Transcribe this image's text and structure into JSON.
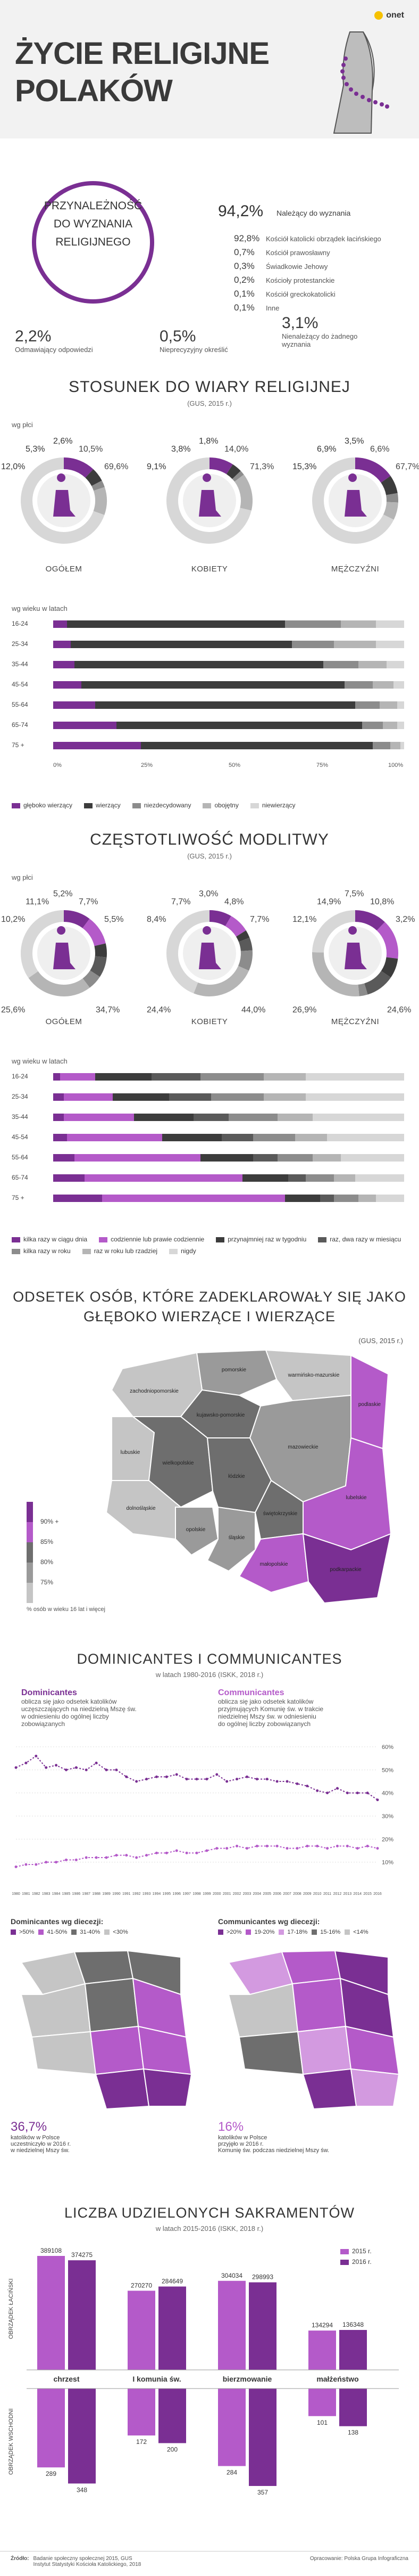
{
  "brand": {
    "name": "onet",
    "accent": "#f6c100"
  },
  "colors": {
    "dark": "#3c3c3c",
    "purple": "#7a2f93",
    "violet": "#b45ac9",
    "grey": "#8c8c8c",
    "light": "#d7d7d7"
  },
  "header": {
    "title_line1": "ŻYCIE RELIGIJNE",
    "title_line2": "POLAKÓW"
  },
  "affiliation": {
    "box_label": [
      "PRZYNALEŻNOŚĆ",
      "DO WYZNANIA",
      "RELIGIJNEGO"
    ],
    "main_pct": "94,2%",
    "main_label": "Należący do wyznania",
    "items": [
      {
        "pct": "92,8%",
        "label": "Kościół katolicki obrządek łacińskiego"
      },
      {
        "pct": "0,7%",
        "label": "Kościół prawosławny"
      },
      {
        "pct": "0,3%",
        "label": "Świadkowie Jehowy"
      },
      {
        "pct": "0,2%",
        "label": "Kościoły protestanckie"
      },
      {
        "pct": "0,1%",
        "label": "Kościół greckokatolicki"
      },
      {
        "pct": "0,1%",
        "label": "Inne"
      }
    ],
    "refused_pct": "2,2%",
    "refused_label": "Odmawiający odpowiedzi",
    "undetermined_pct": "0,5%",
    "undetermined_label": "Nieprecyzyjny określić",
    "none_pct": "3,1%",
    "none_label": [
      "Nienależący do żadnego",
      "wyznania"
    ]
  },
  "attitude": {
    "title": "STOSUNEK DO WIARY RELIGIJNEJ",
    "source": "(GUS, 2015 r.)",
    "by_sex_label": "wg płci",
    "donuts": [
      {
        "label": "OGÓŁEM",
        "values": [
          "12,0%",
          "5,3%",
          "2,6%",
          "10,5%",
          "69,6%"
        ]
      },
      {
        "label": "KOBIETY",
        "values": [
          "9,1%",
          "3,8%",
          "1,8%",
          "14,0%",
          "71,3%"
        ]
      },
      {
        "label": "MĘŻCZYŹNI",
        "values": [
          "15,3%",
          "6,9%",
          "3,5%",
          "6,6%",
          "67,7%"
        ]
      }
    ],
    "by_age_label": "wg wieku w latach",
    "ages": [
      "16-24",
      "25-34",
      "35-44",
      "45-54",
      "55-64",
      "65-74",
      "75 +"
    ],
    "axis": [
      "0%",
      "25%",
      "50%",
      "75%",
      "100%"
    ],
    "legend": [
      "głęboko wierzący",
      "wierzący",
      "niezdecydowany",
      "obojętny",
      "niewierzący"
    ]
  },
  "prayer": {
    "title": "CZĘSTOTLIWOŚĆ MODLITWY",
    "source": "(GUS, 2015 r.)",
    "by_sex_label": "wg płci",
    "donuts": [
      {
        "label": "OGÓŁEM",
        "values": [
          "10,2%",
          "11,1%",
          "5,2%",
          "7,7%",
          "5,5%",
          "25,6%",
          "34,7%"
        ]
      },
      {
        "label": "KOBIETY",
        "values": [
          "8,4%",
          "7,7%",
          "3,0%",
          "4,8%",
          "7,7%",
          "24,4%",
          "44,0%"
        ]
      },
      {
        "label": "MĘŻCZYŹNI",
        "values": [
          "12,1%",
          "14,9%",
          "7,5%",
          "10,8%",
          "3,2%",
          "26,9%",
          "24,6%"
        ]
      }
    ],
    "by_age_label": "wg wieku w latach",
    "ages": [
      "16-24",
      "25-34",
      "35-44",
      "45-54",
      "55-64",
      "65-74",
      "75 +"
    ],
    "legend": [
      "kilka razy w ciągu dnia",
      "codziennie lub prawie codziennie",
      "przynajmniej raz w tygodniu",
      "raz, dwa razy w miesiącu",
      "kilka razy w roku",
      "raz w roku lub rzadziej",
      "nigdy"
    ]
  },
  "believers": {
    "title_line1": "ODSETEK OSÓB, KTÓRE ZADEKLAROWAŁY SIĘ JAKO",
    "title_line2": "GŁĘBOKO WIERZĄCE I WIERZĄCE",
    "source": "(GUS, 2015 r.)",
    "scale": [
      "90% +",
      "85%",
      "80%",
      "75%"
    ],
    "scale_note": "% osób w wieku 16 lat i więcej",
    "regions": [
      "pomorskie",
      "zachodniopomorskie",
      "warmińsko-mazurskie",
      "kujawsko-pomorskie",
      "podlaskie",
      "lubuskie",
      "wielkopolskie",
      "mazowieckie",
      "łódzkie",
      "dolnośląskie",
      "opolskie",
      "śląskie",
      "świętokrzyskie",
      "lubelskie",
      "małopolskie",
      "podkarpackie"
    ]
  },
  "dominicantes": {
    "title": "DOMINICANTES I COMMUNICANTES",
    "subtitle": "w latach 1980-2016 (ISKK, 2018 r.)",
    "dom_label": "Dominicantes",
    "dom_desc": [
      "oblicza się jako odsetek katolików",
      "uczęszczających na niedzielną Mszę św.",
      "w odniesieniu do ogólnej liczby",
      "zobowiązanych"
    ],
    "com_label": "Communicantes",
    "com_desc": [
      "oblicza się jako odsetek katolików",
      "przyjmujących Komunię św. w trakcie",
      "niedzielnej Mszy św. w odniesieniu",
      "do ogólnej liczby zobowiązanych"
    ],
    "yaxis": [
      "60%",
      "50%",
      "40%",
      "30%",
      "20%",
      "10%"
    ],
    "dom_map_title": "Dominicantes wg diecezji:",
    "dom_scale": [
      ">50%",
      "41-50%",
      "31-40%",
      "<30%"
    ],
    "com_map_title": "Communicantes wg diecezji:",
    "com_scale": [
      ">20%",
      "19-20%",
      "17-18%",
      "15-16%",
      "<14%"
    ],
    "dom_stat": "36,7%",
    "dom_stat_desc": [
      "katolików w Polsce",
      "uczestniczyło w 2016 r.",
      "w niedzielnej Mszy św."
    ],
    "com_stat": "16%",
    "com_stat_desc": [
      "katolików w Polsce",
      "przyjęło w 2016 r.",
      "Komunię św. podczas niedzielnej Mszy św."
    ]
  },
  "chart_data": [
    {
      "type": "bar",
      "title": "STOSUNEK DO WIARY RELIGIJNEJ",
      "categories": [
        "16-24",
        "25-34",
        "35-44",
        "45-54",
        "55-64",
        "65-74",
        "75 +"
      ],
      "stacked": true,
      "series": [
        {
          "name": "głęboko wierzący",
          "values": [
            4,
            5,
            6,
            8,
            12,
            18,
            25
          ]
        },
        {
          "name": "wierzący",
          "values": [
            62,
            63,
            71,
            75,
            74,
            70,
            66
          ]
        },
        {
          "name": "niezdecydowany",
          "values": [
            16,
            12,
            10,
            8,
            7,
            6,
            5
          ]
        },
        {
          "name": "obojętny",
          "values": [
            10,
            12,
            8,
            6,
            5,
            4,
            3
          ]
        },
        {
          "name": "niewierzący",
          "values": [
            8,
            8,
            5,
            3,
            2,
            2,
            1
          ]
        }
      ]
    },
    {
      "type": "bar",
      "title": "CZĘSTOTLIWOŚĆ MODLITWY",
      "categories": [
        "16-24",
        "25-34",
        "35-44",
        "45-54",
        "55-64",
        "65-74",
        "75 +"
      ],
      "stacked": true,
      "series": [
        {
          "name": "kilka razy w ciągu dnia",
          "values": [
            2,
            3,
            3,
            4,
            6,
            9,
            14
          ]
        },
        {
          "name": "codziennie lub prawie codziennie",
          "values": [
            10,
            14,
            20,
            27,
            36,
            45,
            52
          ]
        },
        {
          "name": "przynajmniej raz w tygodniu",
          "values": [
            16,
            16,
            17,
            17,
            15,
            13,
            10
          ]
        },
        {
          "name": "raz, dwa razy w miesiącu",
          "values": [
            14,
            12,
            10,
            9,
            7,
            5,
            4
          ]
        },
        {
          "name": "kilka razy w roku",
          "values": [
            18,
            15,
            14,
            12,
            10,
            8,
            7
          ]
        },
        {
          "name": "raz w roku lub rzadziej",
          "values": [
            12,
            12,
            10,
            9,
            8,
            6,
            5
          ]
        },
        {
          "name": "nigdy",
          "values": [
            28,
            28,
            26,
            22,
            18,
            14,
            8
          ]
        }
      ]
    },
    {
      "type": "line",
      "title": "DOMINICANTES I COMMUNICANTES",
      "x": [
        "1980",
        "1981",
        "1982",
        "1983",
        "1984",
        "1985",
        "1986",
        "1987",
        "1988",
        "1989",
        "1990",
        "1991",
        "1992",
        "1993",
        "1994",
        "1995",
        "1996",
        "1997",
        "1998",
        "1999",
        "2000",
        "2001",
        "2002",
        "2003",
        "2004",
        "2005",
        "2006",
        "2007",
        "2008",
        "2009",
        "2010",
        "2011",
        "2012",
        "2013",
        "2014",
        "2015",
        "2016"
      ],
      "ylim": [
        0,
        60
      ],
      "series": [
        {
          "name": "Dominicantes",
          "values": [
            51,
            53,
            56,
            51,
            52,
            50,
            51,
            50,
            53,
            50,
            50,
            47,
            45,
            46,
            47,
            47,
            48,
            46,
            46,
            46,
            48,
            45,
            46,
            47,
            46,
            46,
            45,
            45,
            44,
            43,
            41,
            40,
            42,
            40,
            40,
            40,
            37
          ]
        },
        {
          "name": "Communicantes",
          "values": [
            8,
            9,
            9,
            10,
            10,
            11,
            11,
            12,
            12,
            12,
            13,
            13,
            12,
            13,
            14,
            14,
            15,
            14,
            14,
            15,
            16,
            16,
            17,
            16,
            17,
            17,
            17,
            16,
            16,
            17,
            17,
            16,
            17,
            17,
            16,
            17,
            16
          ]
        }
      ]
    },
    {
      "type": "bar",
      "title": "LICZBA UDZIELONYCH SAKRAMENTÓW",
      "subtitle": "w latach 2015-2016 (ISKK, 2018 r.)",
      "categories": [
        "chrzest",
        "I komunia św.",
        "bierzmowanie",
        "małżeństwo"
      ],
      "groups": [
        "OBRZĄDEK ŁACIŃSKI",
        "OBRZĄDEK WSCHODNI"
      ],
      "series": [
        {
          "name": "2015 r.",
          "latin": [
            389108,
            270270,
            304034,
            134294
          ],
          "eastern": [
            289,
            172,
            284,
            101
          ]
        },
        {
          "name": "2016 r.",
          "latin": [
            374275,
            284649,
            298993,
            136348
          ],
          "eastern": [
            348,
            200,
            357,
            138
          ]
        }
      ]
    }
  ],
  "sacraments": {
    "title": "LICZBA UDZIELONYCH SAKRAMENTÓW",
    "subtitle": "w latach 2015-2016 (ISKK, 2018 r.)",
    "latin_label": "OBRZĄDEK ŁACIŃSKI",
    "eastern_label": "OBRZĄDEK WSCHODNI",
    "legend": [
      "2015 r.",
      "2016 r."
    ]
  },
  "footer": {
    "source_label": "Źródło:",
    "source_text": [
      "Badanie społeczny społecznej 2015, GUS",
      "Instytut Statystyki Kościoła Katolickiego, 2018"
    ],
    "credit": "Opracowanie: Polska Grupa Infograficzna"
  }
}
